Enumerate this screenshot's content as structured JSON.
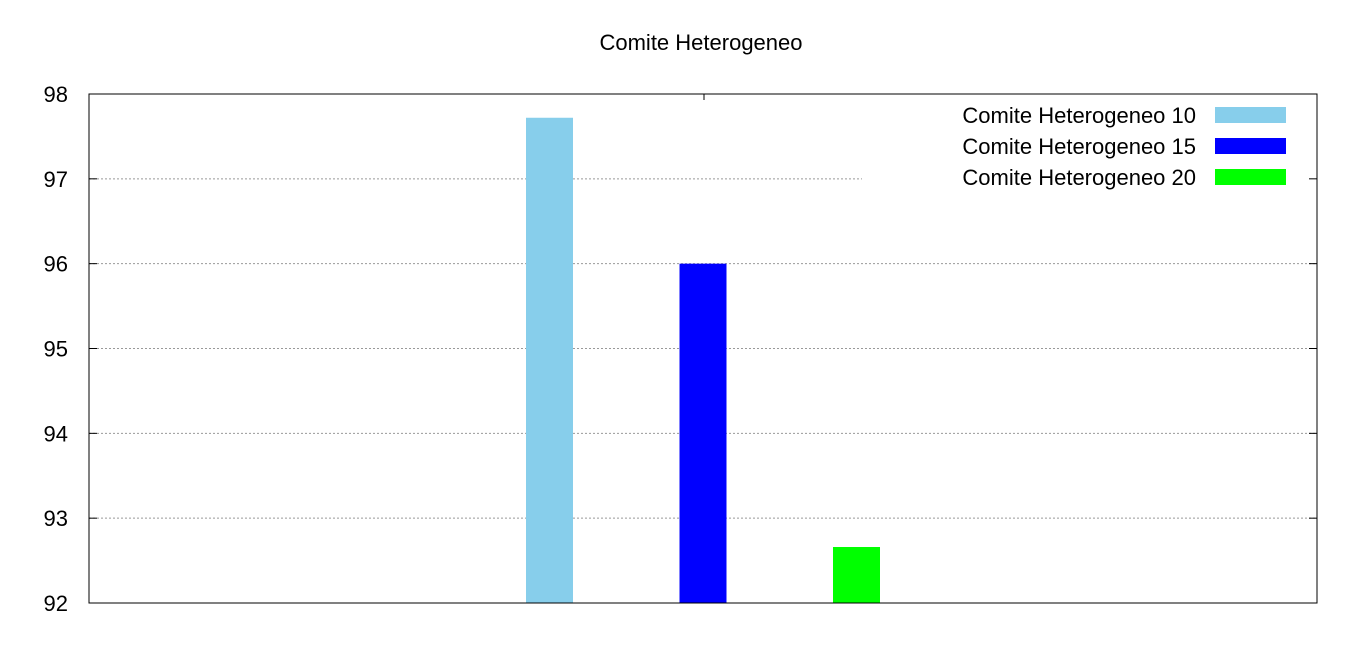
{
  "chart_data": {
    "type": "bar",
    "title": "Comite Heterogeneo",
    "xlabel": "",
    "ylabel": "",
    "ylim": [
      92,
      98
    ],
    "yticks": [
      "92",
      "93",
      "94",
      "95",
      "96",
      "97",
      "98"
    ],
    "grid": true,
    "legend_position": "top-right",
    "series": [
      {
        "name": "Comite Heterogeneo 10",
        "value": 97.72,
        "color": "#87CEEB"
      },
      {
        "name": "Comite Heterogeneo 15",
        "value": 96.0,
        "color": "#0000FF"
      },
      {
        "name": "Comite Heterogeneo 20",
        "value": 92.66,
        "color": "#00FF00"
      }
    ]
  }
}
